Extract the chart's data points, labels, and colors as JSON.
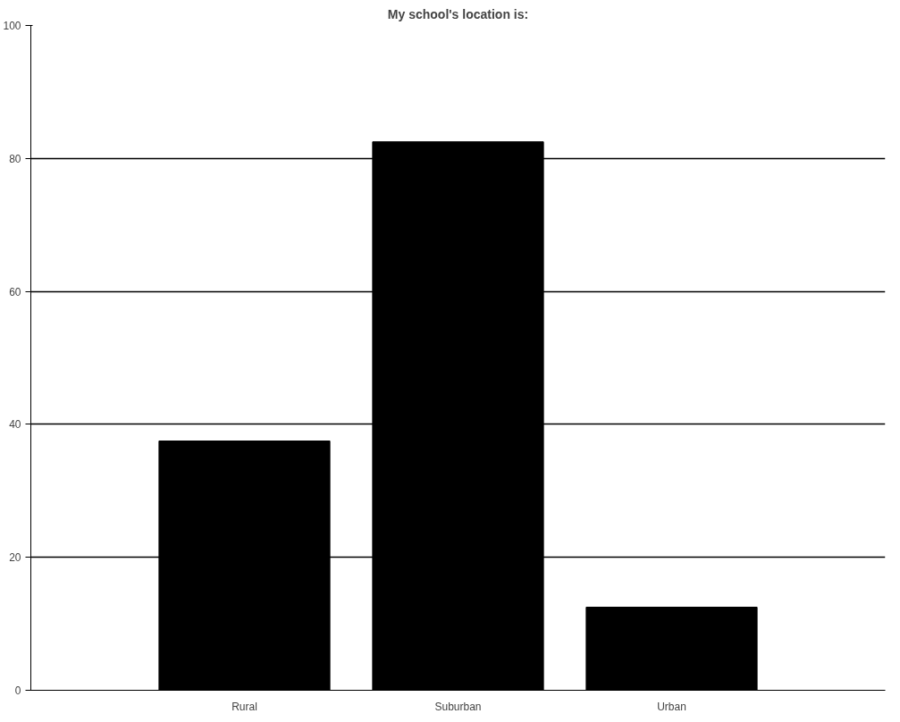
{
  "chart_data": {
    "type": "bar",
    "title": "My school's location is:",
    "categories": [
      "Rural",
      "Suburban",
      "Urban"
    ],
    "values": [
      37.5,
      82.5,
      12.5
    ],
    "color": "#000000",
    "ylim": [
      0,
      100
    ],
    "yticks": [
      0,
      20,
      40,
      60,
      80,
      100
    ],
    "grid": "y"
  }
}
